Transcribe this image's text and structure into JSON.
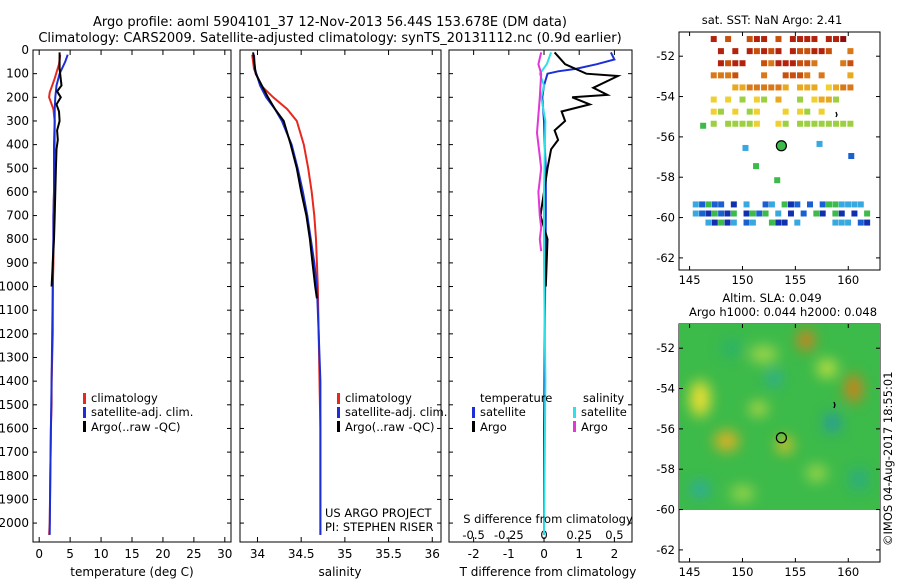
{
  "title": {
    "line1": "Argo profile: aoml 5904101_37 12-Nov-2013 56.44S 153.678E (DM data)",
    "line2": "Climatology: CARS2009. Satellite-adjusted climatology: synTS_20131112.nc (0.9d earlier)"
  },
  "credits": {
    "project": "US ARGO PROJECT",
    "pi": "PI: STEPHEN RISER",
    "stamp": "©IMOS 04-Aug-2017 18:55:01"
  },
  "colors": {
    "climatology": "#e8281e",
    "satellite": "#1c2fd6",
    "argo": "#000000",
    "argo_salinity": "#e236d6",
    "satellite_salinity": "#2fe0e6"
  },
  "chart_data": [
    {
      "type": "line",
      "id": "temperature",
      "xlabel": "temperature (deg C)",
      "ylabel": "",
      "xlim": [
        -1,
        31
      ],
      "ylim": [
        2080,
        0
      ],
      "xticks": [
        0,
        5,
        10,
        15,
        20,
        25,
        30
      ],
      "yticks": [
        0,
        100,
        200,
        300,
        400,
        500,
        600,
        700,
        800,
        900,
        1000,
        1100,
        1200,
        1300,
        1400,
        1500,
        1600,
        1700,
        1800,
        1900,
        2000
      ],
      "legend": [
        "climatology",
        "satellite-adj. clim.",
        "Argo(..raw -QC)"
      ],
      "series": [
        {
          "name": "climatology",
          "color": "#e8281e",
          "x": [
            3.4,
            3.2,
            2.5,
            1.7,
            1.6,
            2.3,
            2.5,
            2.5,
            2.4,
            2.4,
            2.3,
            2.3,
            2.3,
            2.2,
            2.2,
            2.1,
            2.0,
            2.0,
            1.9,
            1.8,
            1.7,
            1.6
          ],
          "y": [
            20,
            60,
            120,
            180,
            200,
            250,
            300,
            400,
            500,
            600,
            700,
            800,
            900,
            1000,
            1200,
            1300,
            1400,
            1500,
            1600,
            1800,
            2000,
            2050
          ]
        },
        {
          "name": "satellite-adj. clim.",
          "color": "#1c2fd6",
          "x": [
            4.6,
            4.2,
            3.3,
            2.8,
            2.6,
            2.5,
            2.5,
            2.4,
            2.4,
            2.4,
            2.3,
            2.3,
            2.2,
            2.2,
            2.1,
            2.0,
            1.9,
            1.8,
            1.7
          ],
          "y": [
            20,
            50,
            100,
            150,
            200,
            250,
            300,
            400,
            500,
            600,
            700,
            800,
            900,
            1000,
            1200,
            1400,
            1600,
            1800,
            2050
          ]
        },
        {
          "name": "Argo(..raw -QC)",
          "color": "#000000",
          "x": [
            3.3,
            3.3,
            3.6,
            2.9,
            3.5,
            2.8,
            3.2,
            3.3,
            2.9,
            3.0,
            2.8,
            2.7,
            2.6,
            2.5,
            2.4,
            2.2,
            2.0
          ],
          "y": [
            10,
            80,
            150,
            175,
            200,
            230,
            260,
            300,
            340,
            380,
            420,
            500,
            600,
            700,
            800,
            900,
            1000
          ]
        }
      ]
    },
    {
      "type": "line",
      "id": "salinity",
      "xlabel": "salinity",
      "ylabel": "",
      "xlim": [
        33.8,
        36.1
      ],
      "ylim": [
        2080,
        0
      ],
      "xticks": [
        34,
        34.5,
        35,
        35.5,
        36
      ],
      "legend": [
        "climatology",
        "satellite-adj. clim.",
        "Argo(..raw -QC)"
      ],
      "series": [
        {
          "name": "climatology",
          "color": "#e8281e",
          "x": [
            33.94,
            33.96,
            34.04,
            34.18,
            34.34,
            34.45,
            34.53,
            34.58,
            34.62,
            34.65,
            34.67,
            34.69,
            34.7,
            34.71,
            34.72,
            34.72
          ],
          "y": [
            20,
            80,
            150,
            200,
            250,
            300,
            400,
            500,
            600,
            700,
            800,
            1000,
            1200,
            1400,
            1600,
            2050
          ]
        },
        {
          "name": "satellite-adj. clim.",
          "color": "#1c2fd6",
          "x": [
            33.96,
            33.97,
            34.03,
            34.1,
            34.2,
            34.28,
            34.39,
            34.46,
            34.52,
            34.57,
            34.61,
            34.65,
            34.68,
            34.7,
            34.72,
            34.72
          ],
          "y": [
            20,
            80,
            150,
            200,
            250,
            300,
            400,
            500,
            600,
            700,
            800,
            900,
            1000,
            1200,
            1400,
            2050
          ]
        },
        {
          "name": "Argo(..raw -QC)",
          "color": "#000000",
          "x": [
            33.95,
            33.98,
            34.05,
            34.12,
            34.2,
            34.3,
            34.38,
            34.45,
            34.5,
            34.56,
            34.6,
            34.63,
            34.66,
            34.68
          ],
          "y": [
            10,
            100,
            150,
            200,
            250,
            300,
            400,
            500,
            600,
            700,
            800,
            900,
            1000,
            1050
          ]
        }
      ]
    },
    {
      "type": "line",
      "id": "difference",
      "xlabel": "T difference from climatology",
      "xlabel2": "S difference from climatology",
      "ylabel": "",
      "xlim_T": [
        -2.7,
        2.5
      ],
      "xlim_S": [
        -0.675,
        0.625
      ],
      "ylim": [
        2080,
        0
      ],
      "xticks_T": [
        -2,
        -1,
        0,
        1,
        2
      ],
      "xticks_S": [
        -0.5,
        -0.25,
        0,
        0.25,
        0.5
      ],
      "legend": {
        "temperature_header": "temperature",
        "salinity_header": "salinity",
        "temperature_items": [
          "satellite",
          "Argo"
        ],
        "salinity_items": [
          "satellite",
          "Argo"
        ]
      },
      "series": [
        {
          "name": "satellite",
          "group": "temperature",
          "color": "#1c2fd6",
          "x": [
            1.9,
            2.0,
            1.5,
            0.9,
            0.4,
            0.1,
            0.0,
            -0.05,
            0.0,
            0.02,
            0.05,
            0.05,
            0.04,
            0.02,
            0.0,
            0.0
          ],
          "y": [
            10,
            40,
            60,
            80,
            90,
            100,
            150,
            200,
            300,
            400,
            500,
            700,
            900,
            1200,
            1600,
            2050
          ]
        },
        {
          "name": "Argo",
          "group": "temperature",
          "color": "#000000",
          "x": [
            0.3,
            0.6,
            1.2,
            2.1,
            1.4,
            1.8,
            0.8,
            1.3,
            0.5,
            0.6,
            0.3,
            0.4,
            0.2,
            0.1,
            0.0,
            -0.1,
            0.1,
            0.05
          ],
          "y": [
            10,
            60,
            100,
            110,
            160,
            190,
            200,
            230,
            260,
            300,
            340,
            380,
            420,
            500,
            600,
            700,
            800,
            1000
          ]
        },
        {
          "name": "satellite",
          "group": "salinity",
          "color": "#2fe0e6",
          "x": [
            0.05,
            0.02,
            -0.03,
            0.0,
            -0.02,
            0.01,
            0.0,
            0.0,
            0.01,
            0.0
          ],
          "y": [
            10,
            60,
            100,
            150,
            200,
            300,
            600,
            900,
            1400,
            2050
          ]
        },
        {
          "name": "Argo",
          "group": "salinity",
          "color": "#e236d6",
          "x": [
            -0.02,
            -0.04,
            -0.02,
            -0.03,
            -0.05,
            -0.03,
            -0.02,
            -0.04,
            -0.03,
            -0.02,
            -0.03,
            -0.02
          ],
          "y": [
            10,
            60,
            100,
            200,
            350,
            450,
            500,
            600,
            700,
            750,
            800,
            850
          ]
        }
      ]
    },
    {
      "type": "heatmap",
      "id": "sst_map",
      "title": "sat. SST: NaN Argo: 2.41",
      "xlim": [
        144,
        163
      ],
      "ylim": [
        -62.6,
        -50.8
      ],
      "xticks": [
        145,
        150,
        155,
        160
      ],
      "yticks": [
        -52,
        -54,
        -56,
        -58,
        -60,
        -62
      ],
      "profile_location": {
        "lon": 153.678,
        "lat": -56.44
      }
    },
    {
      "type": "heatmap",
      "id": "sla_map",
      "title": "Altim. SLA: 0.049",
      "subtitle": "Argo h1000: 0.044 h2000: 0.048",
      "xlim": [
        144,
        163
      ],
      "ylim": [
        -62.6,
        -50.8
      ],
      "xticks": [
        145,
        150,
        155,
        160
      ],
      "yticks": [
        -52,
        -54,
        -56,
        -58,
        -60,
        -62
      ],
      "profile_location": {
        "lon": 153.678,
        "lat": -56.44
      }
    }
  ]
}
